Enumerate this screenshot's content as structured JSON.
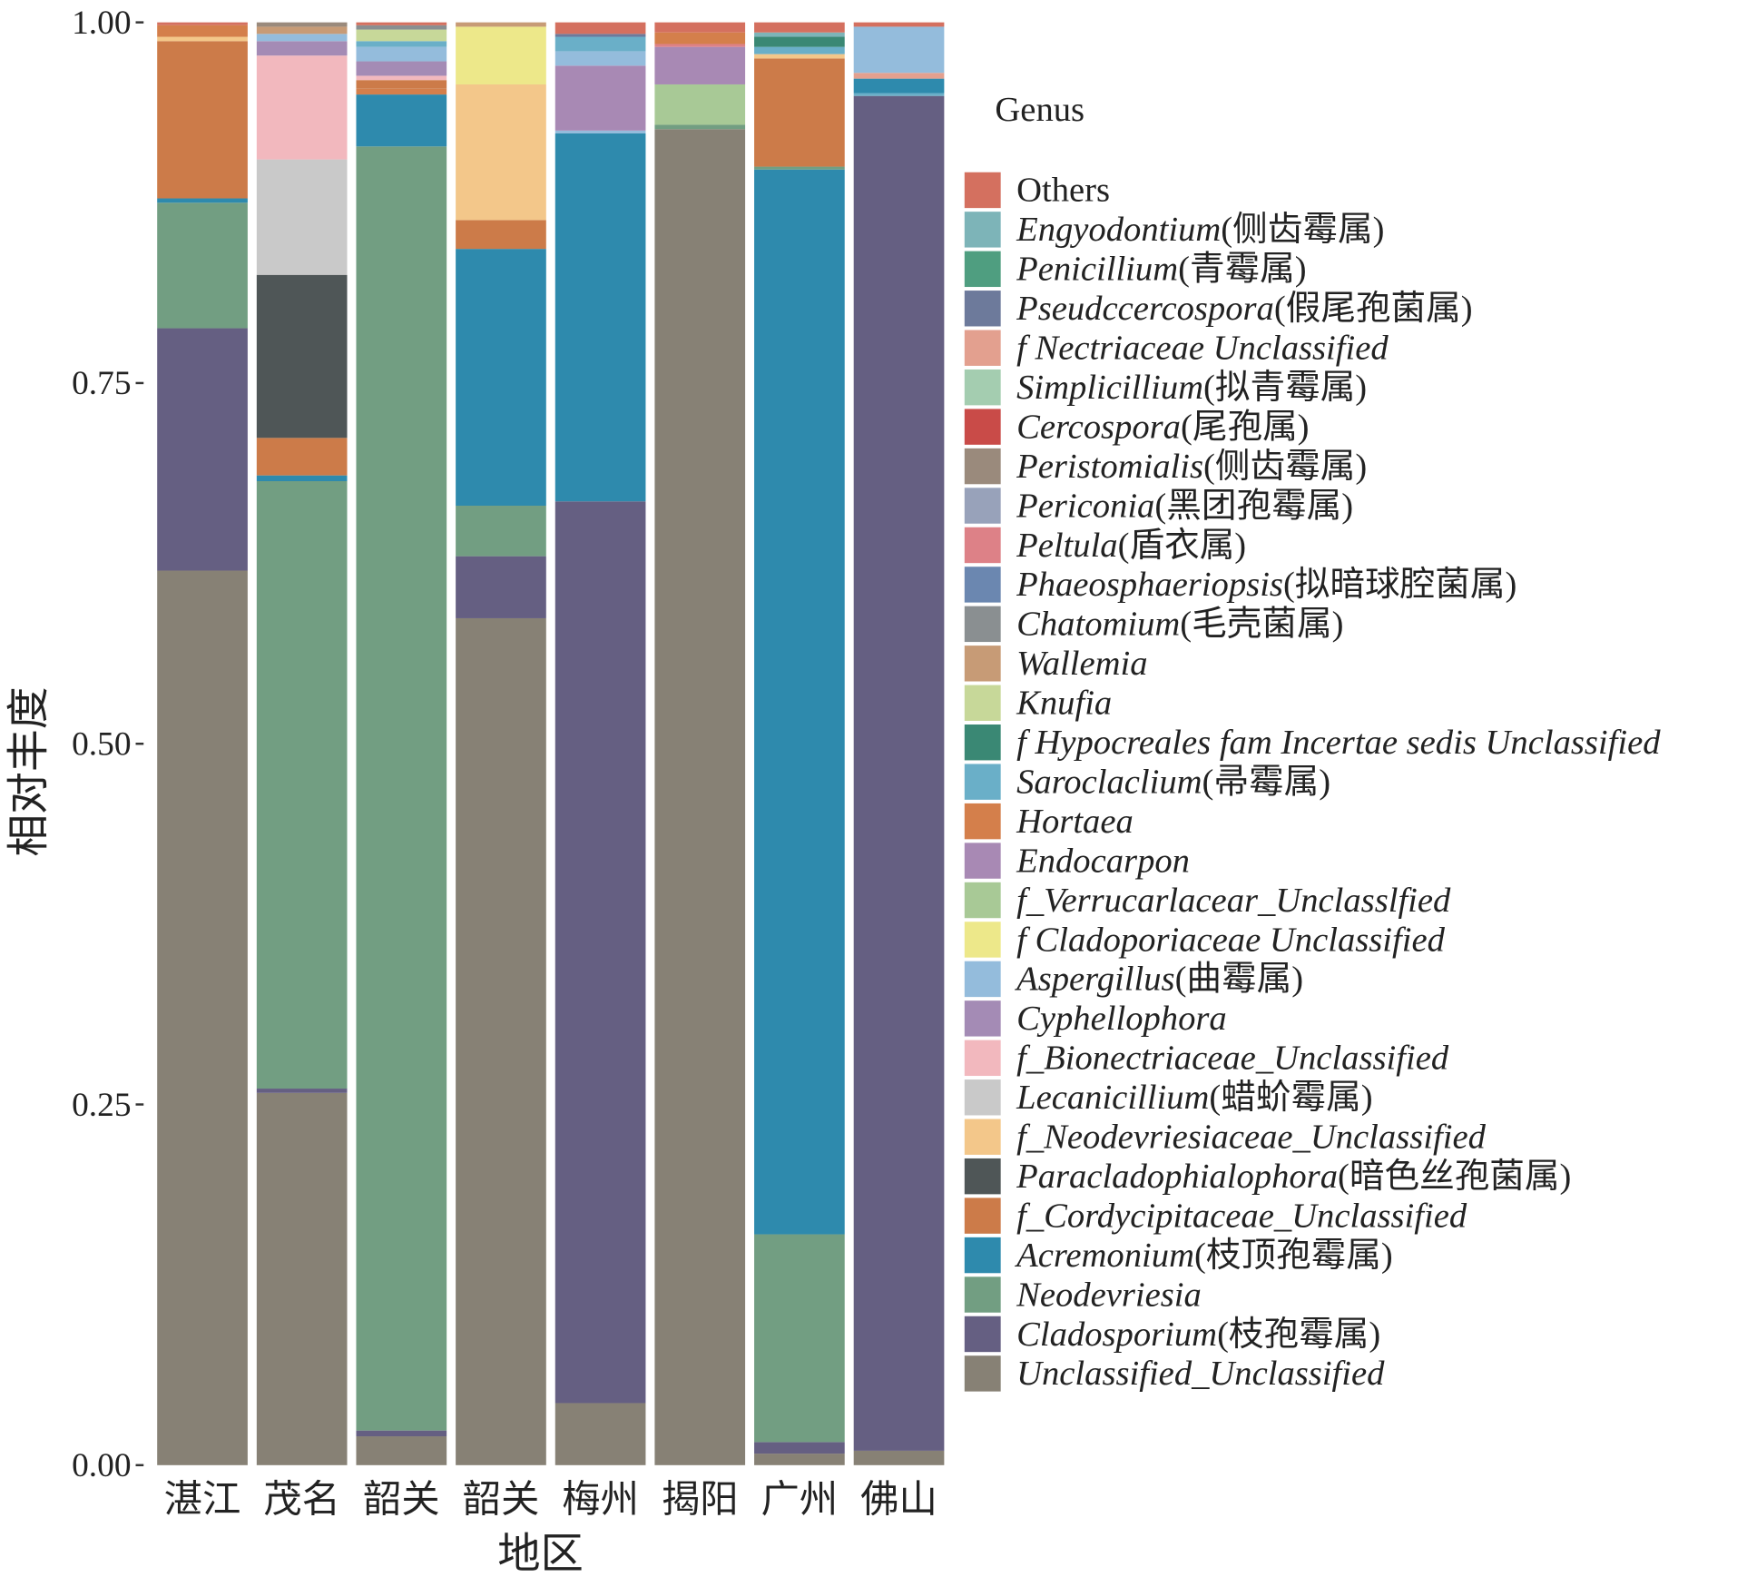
{
  "chart_data": {
    "type": "bar",
    "stacked": true,
    "xlabel": "地区",
    "ylabel": "相对丰度",
    "ylim": [
      0,
      1
    ],
    "yticks": [
      "0.00",
      "0.25",
      "0.50",
      "0.75",
      "1.00"
    ],
    "ytick_values": [
      0,
      0.25,
      0.5,
      0.75,
      1
    ],
    "categories": [
      "湛江",
      "茂名",
      "韶关",
      "韶关",
      "梅州",
      "揭阳",
      "广州",
      "佛山"
    ],
    "legend_title": "Genus",
    "legend_position": "right",
    "genera": [
      {
        "key": "Others",
        "italic": "",
        "plain": "Others",
        "color": "#d4705f"
      },
      {
        "key": "Engyodontium",
        "italic": "Engyodontium",
        "plain": "(侧齿霉属)",
        "color": "#7db4b8"
      },
      {
        "key": "Penicillium",
        "italic": "Penicillium",
        "plain": "(青霉属)",
        "color": "#4f9e80"
      },
      {
        "key": "Pseudccercospora",
        "italic": "Pseudccercospora",
        "plain": "(假尾孢菌属)",
        "color": "#6d7a9b"
      },
      {
        "key": "f_Nectriaceae",
        "italic": "f Nectriaceae Unclassified",
        "plain": "",
        "color": "#e3a08f"
      },
      {
        "key": "Simplicillium",
        "italic": "Simplicillium",
        "plain": "(拟青霉属)",
        "color": "#a4cdb0"
      },
      {
        "key": "Cercospora",
        "italic": "Cercospora",
        "plain": "(尾孢属)",
        "color": "#c94b48"
      },
      {
        "key": "Peristomialis",
        "italic": "Peristomialis",
        "plain": "(侧齿霉属)",
        "color": "#9a8a7c"
      },
      {
        "key": "Periconia",
        "italic": "Periconia",
        "plain": "(黑团孢霉属)",
        "color": "#98a2ba"
      },
      {
        "key": "Peltula",
        "italic": "Peltula",
        "plain": "(盾衣属)",
        "color": "#dd8187"
      },
      {
        "key": "Phaeosphaeriopsis",
        "italic": "Phaeosphaeriopsis",
        "plain": "(拟暗球腔菌属)",
        "color": "#6b87b0"
      },
      {
        "key": "Chatomium",
        "italic": "Chatomium",
        "plain": "(毛壳菌属)",
        "color": "#8a8f91"
      },
      {
        "key": "Wallemia",
        "italic": "Wallemia",
        "plain": "",
        "color": "#c79b76"
      },
      {
        "key": "Knufia",
        "italic": "Knufia",
        "plain": "",
        "color": "#c7d899"
      },
      {
        "key": "f_Hypocreales",
        "italic": "f Hypocreales fam Incertae sedis Unclassified",
        "plain": "",
        "color": "#3a8874"
      },
      {
        "key": "Saroclaclium",
        "italic": "Saroclaclium",
        "plain": "(帚霉属)",
        "color": "#6aafc8"
      },
      {
        "key": "Hortaea",
        "italic": "Hortaea",
        "plain": "",
        "color": "#d47f4b"
      },
      {
        "key": "Endocarpon",
        "italic": "Endocarpon",
        "plain": "",
        "color": "#a889b4"
      },
      {
        "key": "f_Verrucarlacear",
        "italic": "f_Verrucarlacear_Unclasslfied",
        "plain": "",
        "color": "#a8c996"
      },
      {
        "key": "f_Cladoporiaceae",
        "italic": "f Cladoporiaceae Unclassified",
        "plain": "",
        "color": "#ede88a"
      },
      {
        "key": "Aspergillus",
        "italic": "Aspergillus",
        "plain": "(曲霉属)",
        "color": "#94bcdc"
      },
      {
        "key": "Cyphellophora",
        "italic": "Cyphellophora",
        "plain": "",
        "color": "#a48bb5"
      },
      {
        "key": "f_Bionectriaceae",
        "italic": "f_Bionectriaceae_Unclassified",
        "plain": "",
        "color": "#f2b8be"
      },
      {
        "key": "Lecanicillium",
        "italic": "Lecanicillium",
        "plain": "(蜡蚧霉属)",
        "color": "#c9c9c9"
      },
      {
        "key": "f_Neodevriesiaceae",
        "italic": "f_Neodevriesiaceae_Unclassified",
        "plain": "",
        "color": "#f3c78a"
      },
      {
        "key": "Paracladophialophora",
        "italic": "Paracladophialophora",
        "plain": "(暗色丝孢菌属)",
        "color": "#4f5657"
      },
      {
        "key": "f_Cordycipitaceae",
        "italic": "f_Cordycipitaceae_Unclassified",
        "plain": "",
        "color": "#cc7b49"
      },
      {
        "key": "Acremonium",
        "italic": "Acremonium",
        "plain": "(枝顶孢霉属)",
        "color": "#2e8aad"
      },
      {
        "key": "Neodevriesia",
        "italic": "Neodevriesia",
        "plain": "",
        "color": "#729e82"
      },
      {
        "key": "Cladosporium",
        "italic": "Cladosporium",
        "plain": "(枝孢霉属)",
        "color": "#655f82"
      },
      {
        "key": "Unclassified",
        "italic": "Unclassified_Unclassified",
        "plain": "",
        "color": "#878175"
      }
    ],
    "stacks": [
      [
        [
          "Unclassified",
          0.62
        ],
        [
          "Cladosporium",
          0.168
        ],
        [
          "Neodevriesia",
          0.087
        ],
        [
          "Acremonium",
          0.003
        ],
        [
          "f_Cordycipitaceae",
          0.109
        ],
        [
          "f_Neodevriesiaceae",
          0.003
        ],
        [
          "Hortaea",
          0.008
        ],
        [
          "Others",
          0.002
        ]
      ],
      [
        [
          "Unclassified",
          0.258
        ],
        [
          "Cladosporium",
          0.003
        ],
        [
          "Neodevriesia",
          0.421
        ],
        [
          "Acremonium",
          0.004
        ],
        [
          "f_Cordycipitaceae",
          0.026
        ],
        [
          "Paracladophialophora",
          0.113
        ],
        [
          "Lecanicillium",
          0.08
        ],
        [
          "f_Bionectriaceae",
          0.072
        ],
        [
          "Cyphellophora",
          0.01
        ],
        [
          "Aspergillus",
          0.005
        ],
        [
          "Wallemia",
          0.005
        ],
        [
          "Peristomialis",
          0.003
        ]
      ],
      [
        [
          "Unclassified",
          0.02
        ],
        [
          "Cladosporium",
          0.004
        ],
        [
          "Neodevriesia",
          0.89
        ],
        [
          "Acremonium",
          0.036
        ],
        [
          "Hortaea",
          0.004
        ],
        [
          "f_Cordycipitaceae",
          0.006
        ],
        [
          "f_Bionectriaceae",
          0.003
        ],
        [
          "Cyphellophora",
          0.01
        ],
        [
          "Aspergillus",
          0.01
        ],
        [
          "Saroclaclium",
          0.004
        ],
        [
          "Knufia",
          0.008
        ],
        [
          "Chatomium",
          0.003
        ],
        [
          "Others",
          0.002
        ]
      ],
      [
        [
          "Unclassified",
          0.587
        ],
        [
          "Cladosporium",
          0.043
        ],
        [
          "Neodevriesia",
          0.035
        ],
        [
          "Acremonium",
          0.178
        ],
        [
          "f_Cordycipitaceae",
          0.02
        ],
        [
          "f_Neodevriesiaceae",
          0.094
        ],
        [
          "f_Cladoporiaceae",
          0.04
        ],
        [
          "Wallemia",
          0.003
        ]
      ],
      [
        [
          "Unclassified",
          0.043
        ],
        [
          "Cladosporium",
          0.625
        ],
        [
          "Acremonium",
          0.255
        ],
        [
          "Aspergillus",
          0.002
        ],
        [
          "Endocarpon",
          0.045
        ],
        [
          "Aspergillus",
          0.01
        ],
        [
          "Saroclaclium",
          0.01
        ],
        [
          "Pseudccercospora",
          0.002
        ],
        [
          "Others",
          0.008
        ]
      ],
      [
        [
          "Unclassified",
          0.926
        ],
        [
          "Neodevriesia",
          0.003
        ],
        [
          "f_Verrucarlacear",
          0.028
        ],
        [
          "Endocarpon",
          0.026
        ],
        [
          "Peltula",
          0.002
        ],
        [
          "Hortaea",
          0.008
        ],
        [
          "Others",
          0.007
        ]
      ],
      [
        [
          "Unclassified",
          0.008
        ],
        [
          "Cladosporium",
          0.008
        ],
        [
          "Neodevriesia",
          0.144
        ],
        [
          "Acremonium",
          0.738
        ],
        [
          "Neodevriesia",
          0.002
        ],
        [
          "f_Cordycipitaceae",
          0.075
        ],
        [
          "f_Neodevriesiaceae",
          0.003
        ],
        [
          "Saroclaclium",
          0.005
        ],
        [
          "f_Hypocreales",
          0.007
        ],
        [
          "Engyodontium",
          0.003
        ],
        [
          "Others",
          0.007
        ]
      ],
      [
        [
          "Unclassified",
          0.01
        ],
        [
          "Cladosporium",
          0.939
        ],
        [
          "Saroclaclium",
          0.002
        ],
        [
          "Acremonium",
          0.01
        ],
        [
          "f_Nectriaceae",
          0.004
        ],
        [
          "Aspergillus",
          0.032
        ],
        [
          "Others",
          0.003
        ]
      ]
    ]
  }
}
